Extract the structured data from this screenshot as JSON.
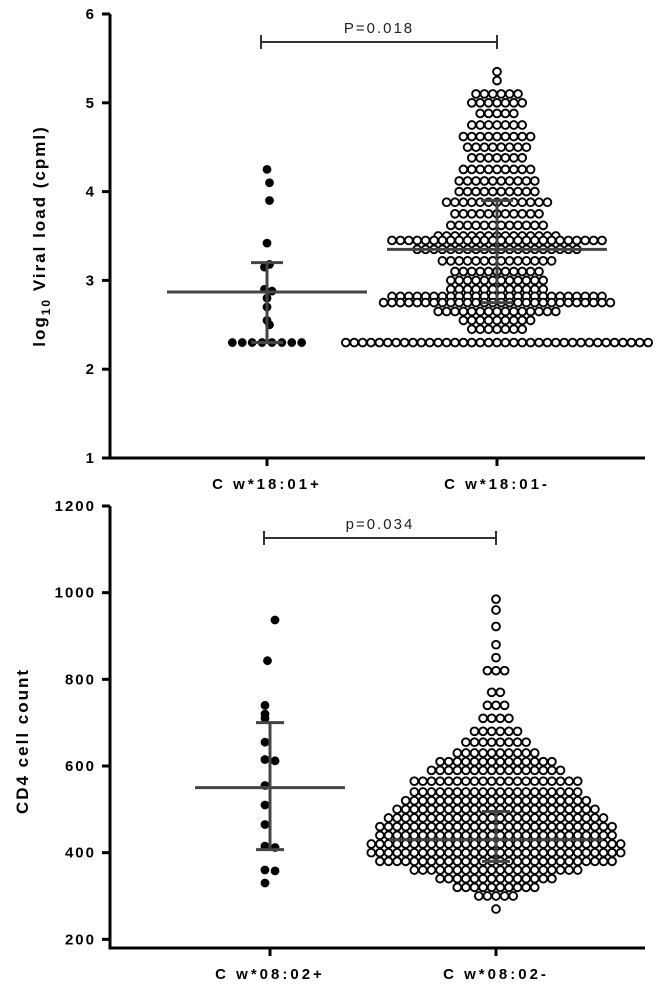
{
  "chart_data": [
    {
      "type": "scatter",
      "ylabel": "log₁₀ Viral load (cpml)",
      "ylabel_parts": [
        "log",
        "10",
        " Viral load (cpml)"
      ],
      "ylim": [
        1,
        6
      ],
      "yticks": [
        1,
        2,
        3,
        4,
        5,
        6
      ],
      "categories": [
        "C w*18:01+",
        "C w*18:01-"
      ],
      "annotation": "P=0.018",
      "groups": [
        {
          "category": "C w*18:01+",
          "marker": "filled",
          "center": 2.87,
          "error": [
            2.3,
            3.2
          ],
          "values": [
            4.25,
            4.1,
            3.9,
            3.42,
            3.18,
            3.15,
            2.9,
            2.88,
            2.8,
            2.7,
            2.55,
            2.5,
            2.3,
            2.3,
            2.3,
            2.3,
            2.3,
            2.3,
            2.3,
            2.3
          ]
        },
        {
          "category": "C w*18:01-",
          "marker": "open",
          "center": 3.35,
          "error": [
            2.75,
            3.9
          ],
          "bins": [
            {
              "y": 5.35,
              "n": 1
            },
            {
              "y": 5.25,
              "n": 1
            },
            {
              "y": 5.1,
              "n": 6
            },
            {
              "y": 5.0,
              "n": 7
            },
            {
              "y": 4.88,
              "n": 5
            },
            {
              "y": 4.75,
              "n": 7
            },
            {
              "y": 4.62,
              "n": 9
            },
            {
              "y": 4.5,
              "n": 8
            },
            {
              "y": 4.38,
              "n": 7
            },
            {
              "y": 4.25,
              "n": 9
            },
            {
              "y": 4.12,
              "n": 10
            },
            {
              "y": 4.0,
              "n": 10
            },
            {
              "y": 3.88,
              "n": 13
            },
            {
              "y": 3.75,
              "n": 11
            },
            {
              "y": 3.62,
              "n": 12
            },
            {
              "y": 3.5,
              "n": 15
            },
            {
              "y": 3.45,
              "n": 26
            },
            {
              "y": 3.35,
              "n": 20
            },
            {
              "y": 3.22,
              "n": 14
            },
            {
              "y": 3.1,
              "n": 11
            },
            {
              "y": 3.0,
              "n": 12
            },
            {
              "y": 2.9,
              "n": 12
            },
            {
              "y": 2.82,
              "n": 26
            },
            {
              "y": 2.75,
              "n": 28
            },
            {
              "y": 2.65,
              "n": 15
            },
            {
              "y": 2.55,
              "n": 9
            },
            {
              "y": 2.45,
              "n": 7
            },
            {
              "y": 2.3,
              "n": 37
            }
          ]
        }
      ]
    },
    {
      "type": "scatter",
      "ylabel": "CD4 cell count",
      "ylim": [
        180,
        1200
      ],
      "yticks": [
        200,
        400,
        600,
        800,
        1000,
        1200
      ],
      "categories": [
        "C w*08:02+",
        "C w*08:02-"
      ],
      "annotation": "p=0.034",
      "groups": [
        {
          "category": "C w*08:02+",
          "marker": "filled",
          "center": 550,
          "error": [
            407,
            700
          ],
          "values": [
            937,
            843,
            740,
            720,
            710,
            655,
            615,
            612,
            555,
            510,
            465,
            415,
            412,
            360,
            358,
            330
          ]
        },
        {
          "category": "C w*08:02-",
          "marker": "open",
          "center": 430,
          "error": [
            380,
            495
          ],
          "bins": [
            {
              "y": 985,
              "n": 1
            },
            {
              "y": 960,
              "n": 1
            },
            {
              "y": 922,
              "n": 1
            },
            {
              "y": 880,
              "n": 1
            },
            {
              "y": 850,
              "n": 1
            },
            {
              "y": 820,
              "n": 3
            },
            {
              "y": 770,
              "n": 2
            },
            {
              "y": 740,
              "n": 3
            },
            {
              "y": 710,
              "n": 4
            },
            {
              "y": 680,
              "n": 6
            },
            {
              "y": 655,
              "n": 8
            },
            {
              "y": 630,
              "n": 10
            },
            {
              "y": 610,
              "n": 14
            },
            {
              "y": 590,
              "n": 16
            },
            {
              "y": 565,
              "n": 20
            },
            {
              "y": 540,
              "n": 20
            },
            {
              "y": 520,
              "n": 22
            },
            {
              "y": 500,
              "n": 24
            },
            {
              "y": 480,
              "n": 26
            },
            {
              "y": 460,
              "n": 28
            },
            {
              "y": 440,
              "n": 28
            },
            {
              "y": 420,
              "n": 30
            },
            {
              "y": 400,
              "n": 30
            },
            {
              "y": 380,
              "n": 28
            },
            {
              "y": 360,
              "n": 20
            },
            {
              "y": 340,
              "n": 14
            },
            {
              "y": 320,
              "n": 10
            },
            {
              "y": 300,
              "n": 5
            },
            {
              "y": 270,
              "n": 1
            }
          ]
        }
      ]
    }
  ]
}
